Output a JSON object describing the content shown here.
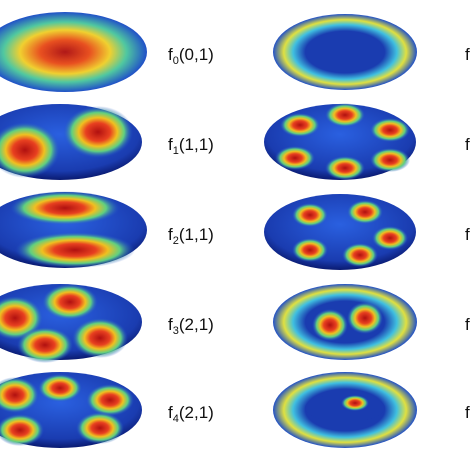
{
  "left_labels": [
    {
      "letter": "f",
      "sub": "0",
      "args": "(0,1)"
    },
    {
      "letter": "f",
      "sub": "1",
      "args": "(1,1)"
    },
    {
      "letter": "f",
      "sub": "2",
      "args": "(1,1)"
    },
    {
      "letter": "f",
      "sub": "3",
      "args": "(2,1)"
    },
    {
      "letter": "f",
      "sub": "4",
      "args": "(2,1)"
    }
  ],
  "right_labels": [
    "f",
    "f",
    "f",
    "f",
    "f"
  ]
}
